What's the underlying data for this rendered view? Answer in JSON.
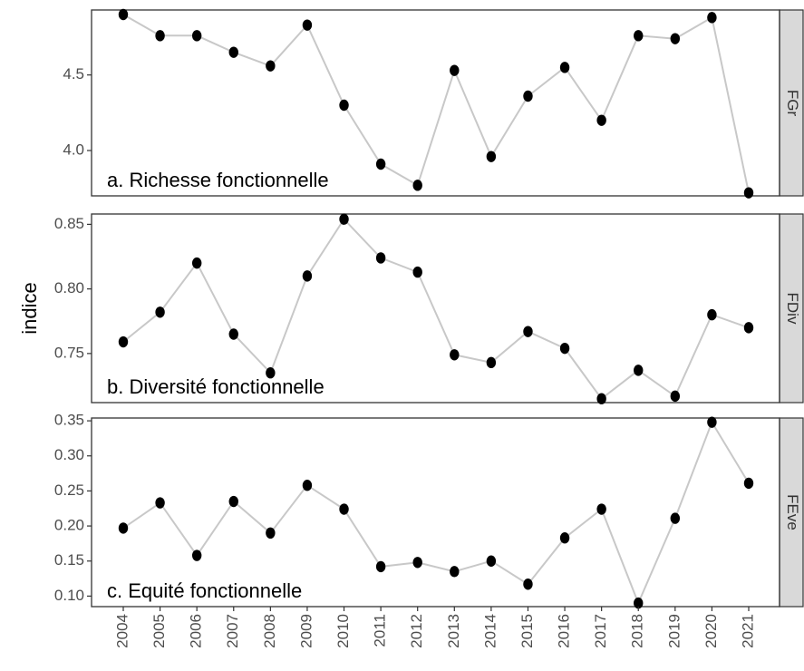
{
  "chart_data": {
    "type": "line",
    "ylabel": "indice",
    "x": [
      "2004",
      "2005",
      "2006",
      "2007",
      "2008",
      "2009",
      "2010",
      "2011",
      "2012",
      "2013",
      "2014",
      "2015",
      "2016",
      "2017",
      "2018",
      "2019",
      "2020",
      "2021"
    ],
    "panels": [
      {
        "strip": "FGr",
        "annotation": "a. Richesse fonctionnelle",
        "ylim": [
          3.7,
          4.93
        ],
        "yticks": [
          4.0,
          4.5
        ],
        "ytick_labels": [
          "4.0",
          "4.5"
        ],
        "values": [
          4.9,
          4.76,
          4.76,
          4.65,
          4.56,
          4.83,
          4.3,
          3.91,
          3.77,
          4.53,
          3.96,
          4.36,
          4.55,
          4.2,
          4.76,
          4.74,
          4.88,
          3.72
        ]
      },
      {
        "strip": "FDiv",
        "annotation": "b. Diversité fonctionnelle",
        "ylim": [
          0.712,
          0.858
        ],
        "yticks": [
          0.75,
          0.8,
          0.85
        ],
        "ytick_labels": [
          "0.75",
          "0.80",
          "0.85"
        ],
        "values": [
          0.759,
          0.782,
          0.82,
          0.765,
          0.735,
          0.81,
          0.854,
          0.824,
          0.813,
          0.749,
          0.743,
          0.767,
          0.754,
          0.715,
          0.737,
          0.717,
          0.78,
          0.77
        ]
      },
      {
        "strip": "FEve",
        "annotation": "c. Equité fonctionnelle",
        "ylim": [
          0.085,
          0.354
        ],
        "yticks": [
          0.1,
          0.15,
          0.2,
          0.25,
          0.3,
          0.35
        ],
        "ytick_labels": [
          "0.10",
          "0.15",
          "0.20",
          "0.25",
          "0.30",
          "0.35"
        ],
        "values": [
          0.197,
          0.233,
          0.158,
          0.235,
          0.19,
          0.258,
          0.224,
          0.142,
          0.148,
          0.135,
          0.15,
          0.117,
          0.183,
          0.224,
          0.09,
          0.211,
          0.348,
          0.261
        ]
      }
    ],
    "colors": {
      "line": "#c8c8c8",
      "point": "#000000",
      "panel_border": "#333333",
      "strip_bg": "#d9d9d9"
    },
    "grid": false
  }
}
